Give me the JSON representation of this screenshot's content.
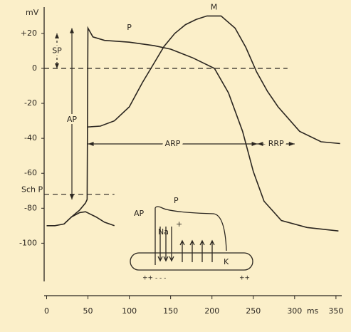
{
  "chart_data": {
    "type": "line",
    "y_axis_label": "mV",
    "x_axis_unit": "ms",
    "xlim": [
      -3,
      357
    ],
    "ylim": [
      -130,
      33
    ],
    "xticks": [
      0,
      50,
      100,
      150,
      200,
      250,
      300,
      350
    ],
    "yticks": [
      {
        "value": 20,
        "label": "+20"
      },
      0,
      -20,
      -40,
      -60,
      -80,
      -100
    ],
    "color": "#2b2620",
    "series": [
      {
        "name": "P",
        "x": [
          0,
          10,
          21,
          30,
          40,
          47,
          49,
          50,
          56,
          70,
          100,
          130,
          150,
          177,
          203,
          220,
          237,
          250,
          263,
          284,
          315,
          353
        ],
        "values": [
          -90,
          -90,
          -89,
          -85,
          -81,
          -77,
          -75,
          23,
          18,
          16,
          15,
          13,
          11,
          6,
          0,
          -14,
          -36,
          -59,
          -76,
          -87,
          -91,
          -93
        ]
      },
      {
        "x": [
          21,
          30,
          40,
          47,
          60,
          70,
          82
        ],
        "values": [
          -89,
          -85,
          -82.5,
          -82,
          -85,
          -88,
          -90
        ]
      },
      {
        "name": "M",
        "x": [
          50,
          65,
          82,
          100,
          116,
          130,
          142,
          155,
          168,
          181,
          194,
          211,
          228,
          241,
          254,
          267,
          280,
          306,
          332,
          355
        ],
        "values": [
          -33.5,
          -33,
          -30,
          -22,
          -8,
          3,
          12.6,
          20,
          25,
          28,
          30,
          30,
          23,
          12,
          -2,
          -13,
          -22,
          -36,
          -42,
          -43
        ]
      }
    ],
    "reference_lines": [
      {
        "value": 0
      },
      {
        "value": -72,
        "label": "Sch P"
      }
    ],
    "spans": [
      {
        "label": "SP",
        "from": 0,
        "to": 20
      },
      {
        "label": "AP",
        "from": -75,
        "to": 23
      }
    ],
    "intervals": [
      {
        "label": "ARP",
        "start": 50,
        "end": 255
      },
      {
        "label": "RRP",
        "start": 255,
        "end": 300
      }
    ],
    "inset_labels": [
      "AP",
      "P",
      "Na",
      "+",
      "K",
      "++ - -  -",
      "++"
    ]
  }
}
